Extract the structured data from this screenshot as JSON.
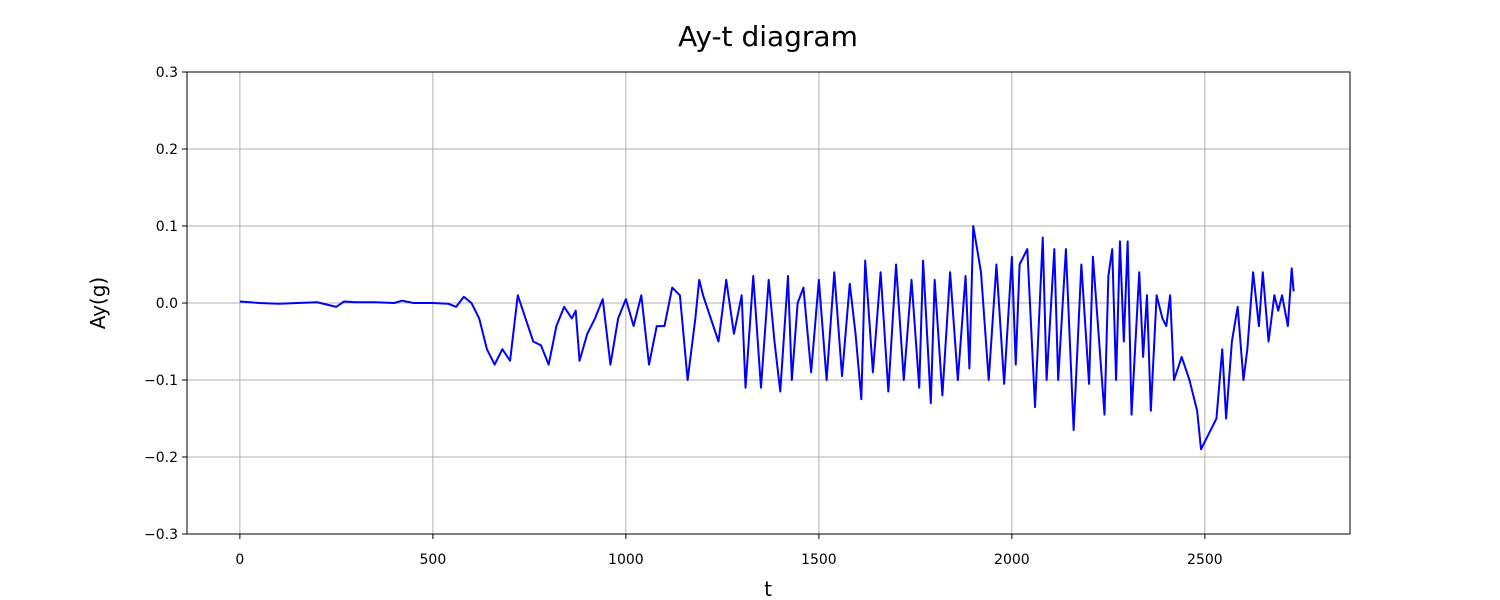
{
  "chart_data": {
    "type": "line",
    "title": "Ay-t diagram",
    "x_label": "t",
    "y_label": "Ay(g)",
    "color": "#0000ff",
    "grid": true,
    "xlim": [
      -137,
      2876
    ],
    "ylim": [
      -0.3,
      0.3
    ],
    "xticks": [
      0,
      500,
      1000,
      1500,
      2000,
      2500
    ],
    "yticks": [
      {
        "value": -0.3,
        "label": "−0.3"
      },
      {
        "value": -0.2,
        "label": "−0.2"
      },
      {
        "value": -0.1,
        "label": "−0.1"
      },
      {
        "value": 0,
        "label": "0.0"
      },
      0.1,
      0.2,
      0.3
    ],
    "x": [
      0,
      50,
      100,
      150,
      200,
      250,
      270,
      300,
      350,
      400,
      420,
      450,
      500,
      540,
      560,
      580,
      600,
      620,
      640,
      660,
      680,
      700,
      720,
      740,
      760,
      780,
      800,
      820,
      840,
      860,
      870,
      880,
      900,
      920,
      940,
      960,
      980,
      1000,
      1020,
      1040,
      1060,
      1080,
      1100,
      1120,
      1140,
      1160,
      1180,
      1190,
      1200,
      1220,
      1240,
      1260,
      1280,
      1300,
      1310,
      1330,
      1350,
      1370,
      1385,
      1400,
      1420,
      1430,
      1445,
      1460,
      1480,
      1500,
      1520,
      1540,
      1560,
      1580,
      1595,
      1610,
      1620,
      1640,
      1660,
      1680,
      1700,
      1720,
      1740,
      1760,
      1770,
      1790,
      1800,
      1820,
      1840,
      1860,
      1880,
      1890,
      1900,
      1920,
      1940,
      1960,
      1980,
      2000,
      2010,
      2020,
      2040,
      2060,
      2080,
      2090,
      2110,
      2120,
      2140,
      2160,
      2180,
      2200,
      2210,
      2240,
      2250,
      2260,
      2270,
      2280,
      2290,
      2300,
      2310,
      2330,
      2340,
      2350,
      2360,
      2375,
      2390,
      2400,
      2410,
      2420,
      2440,
      2460,
      2480,
      2490,
      2510,
      2530,
      2545,
      2555,
      2570,
      2585,
      2600,
      2610,
      2625,
      2640,
      2650,
      2665,
      2680,
      2690,
      2700,
      2715,
      2725,
      2730
    ],
    "values": [
      0.002,
      0,
      -0.001,
      0,
      0.001,
      -0.005,
      0.002,
      0.001,
      0.001,
      0,
      0.003,
      0,
      0,
      -0.001,
      -0.005,
      0.008,
      0,
      -0.02,
      -0.06,
      -0.08,
      -0.06,
      -0.075,
      0.01,
      -0.02,
      -0.05,
      -0.055,
      -0.08,
      -0.03,
      -0.005,
      -0.02,
      -0.01,
      -0.075,
      -0.04,
      -0.02,
      0.005,
      -0.08,
      -0.02,
      0.005,
      -0.03,
      0.01,
      -0.08,
      -0.03,
      -0.03,
      0.02,
      0.01,
      -0.1,
      -0.02,
      0.03,
      0.01,
      -0.02,
      -0.05,
      0.03,
      -0.04,
      0.01,
      -0.11,
      0.035,
      -0.11,
      0.03,
      -0.05,
      -0.115,
      0.035,
      -0.1,
      0,
      0.02,
      -0.09,
      0.03,
      -0.1,
      0.04,
      -0.095,
      0.025,
      -0.04,
      -0.125,
      0.055,
      -0.09,
      0.04,
      -0.115,
      0.05,
      -0.1,
      0.03,
      -0.11,
      0.055,
      -0.13,
      0.03,
      -0.12,
      0.04,
      -0.1,
      0.035,
      -0.085,
      0.1,
      0.04,
      -0.1,
      0.05,
      -0.105,
      0.06,
      -0.08,
      0.05,
      0.07,
      -0.135,
      0.085,
      -0.1,
      0.07,
      -0.1,
      0.07,
      -0.165,
      0.05,
      -0.105,
      0.06,
      -0.145,
      0.035,
      0.07,
      -0.1,
      0.08,
      -0.05,
      0.08,
      -0.145,
      0.04,
      -0.07,
      0.01,
      -0.14,
      0.01,
      -0.02,
      -0.03,
      0.01,
      -0.1,
      -0.07,
      -0.1,
      -0.14,
      -0.19,
      -0.17,
      -0.15,
      -0.06,
      -0.15,
      -0.05,
      -0.005,
      -0.1,
      -0.06,
      0.04,
      -0.03,
      0.04,
      -0.05,
      0.01,
      -0.01,
      0.01,
      -0.03,
      0.045,
      0.015
    ]
  }
}
